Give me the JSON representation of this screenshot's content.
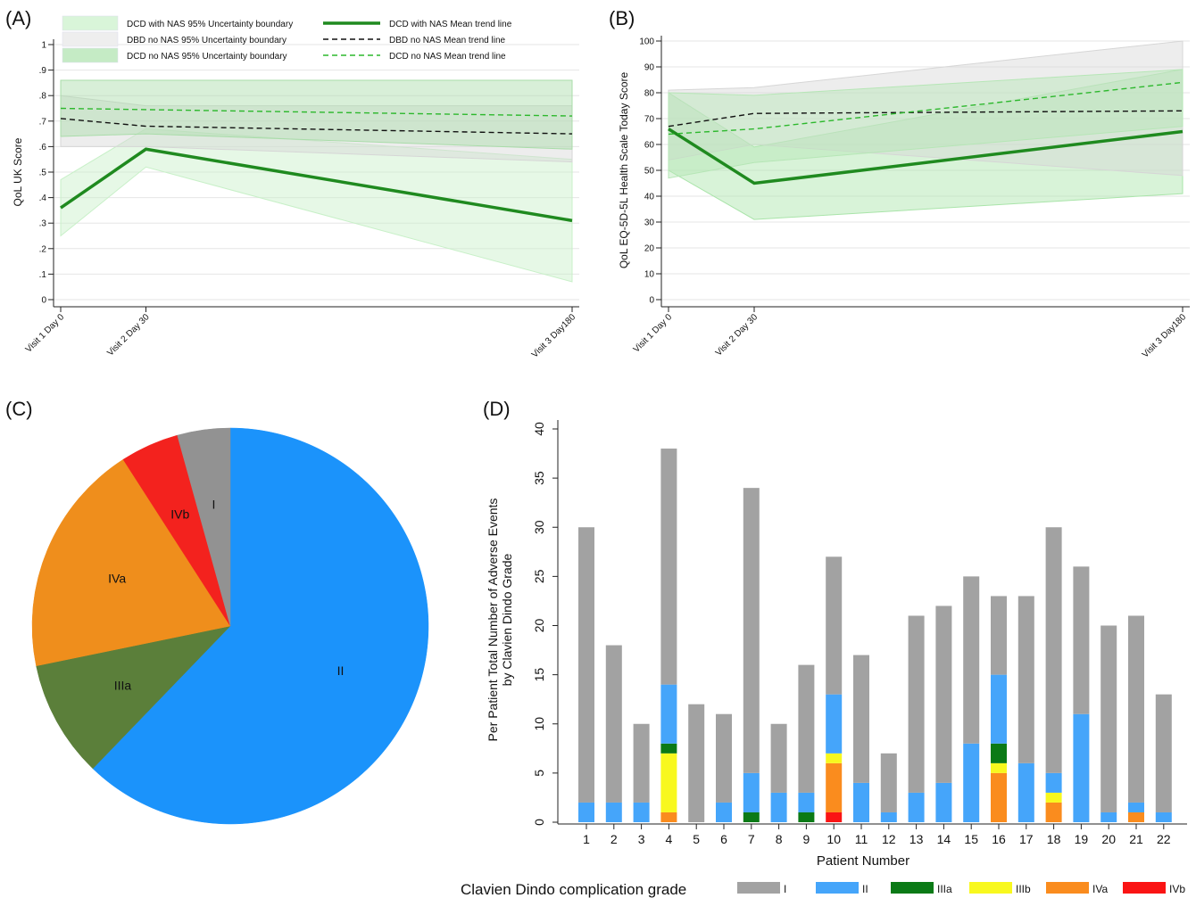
{
  "panel_labels": [
    "(A)",
    "(B)",
    "(C)",
    "(D)"
  ],
  "chart_data": [
    {
      "type": "line",
      "panel": "(A)",
      "ylabel": "QoL UK Score",
      "xlabel": "",
      "x": [
        0,
        30,
        180
      ],
      "x_tick_labels": [
        "Visit 1 Day 0",
        "Visit 2 Day 30",
        "Visit 3 Day180"
      ],
      "ylim": [
        0,
        1
      ],
      "y_ticks": [
        0,
        0.1,
        0.2,
        0.3,
        0.4,
        0.5,
        0.6,
        0.7,
        0.8,
        0.9,
        1
      ],
      "y_tick_labels": [
        "0",
        ".1",
        ".2",
        ".3",
        ".4",
        ".5",
        ".6",
        ".7",
        ".8",
        ".9",
        "1"
      ],
      "grid": true,
      "legend": [
        "DCD with NAS 95% Uncertainty boundary",
        "DBD no NAS 95% Uncertainty boundary",
        "DCD no NAS 95% Uncertainty boundary",
        "DCD with NAS Mean trend line",
        "DBD no NAS Mean trend line",
        "DCD no NAS Mean trend line"
      ],
      "legend_placement": "top",
      "series": [
        {
          "name": "DCD with NAS Mean trend line",
          "values": [
            0.36,
            0.59,
            0.31
          ],
          "color": "#1f8a1f",
          "style": "solid-thick"
        },
        {
          "name": "DBD no NAS Mean trend line",
          "values": [
            0.71,
            0.68,
            0.65
          ],
          "color": "#111111",
          "style": "dashed"
        },
        {
          "name": "DCD no NAS Mean trend line",
          "values": [
            0.75,
            0.745,
            0.72
          ],
          "color": "#2db82d",
          "style": "dashed"
        }
      ],
      "bands": [
        {
          "name": "DCD with NAS 95% Uncertainty boundary",
          "lower": [
            0.25,
            0.52,
            0.07
          ],
          "upper": [
            0.47,
            0.67,
            0.55
          ],
          "color": "#c8f0c8"
        },
        {
          "name": "DBD no NAS 95% Uncertainty boundary",
          "lower": [
            0.6,
            0.6,
            0.54
          ],
          "upper": [
            0.8,
            0.76,
            0.76
          ],
          "color": "#d6d6d6"
        },
        {
          "name": "DCD no NAS 95% Uncertainty boundary",
          "lower": [
            0.64,
            0.65,
            0.59
          ],
          "upper": [
            0.86,
            0.86,
            0.86
          ],
          "color": "#a9dca9"
        }
      ]
    },
    {
      "type": "line",
      "panel": "(B)",
      "ylabel": "QoL EQ-5D-5L Health Scale Today Score",
      "xlabel": "",
      "x": [
        0,
        30,
        180
      ],
      "x_tick_labels": [
        "Visit 1 Day 0",
        "Visit 2 Day 30",
        "Visit 3 Day180"
      ],
      "ylim": [
        0,
        100
      ],
      "y_ticks": [
        0,
        10,
        20,
        30,
        40,
        50,
        60,
        70,
        80,
        90,
        100
      ],
      "y_tick_labels": [
        "0",
        "10",
        "20",
        "30",
        "40",
        "50",
        "60",
        "70",
        "80",
        "90",
        "100"
      ],
      "grid": true,
      "series": [
        {
          "name": "DCD with NAS Mean trend line",
          "values": [
            66,
            45,
            65
          ],
          "color": "#1f8a1f",
          "style": "solid-thick"
        },
        {
          "name": "DBD no NAS Mean trend line",
          "values": [
            67,
            72,
            73
          ],
          "color": "#111111",
          "style": "dashed"
        },
        {
          "name": "DCD no NAS Mean trend line",
          "values": [
            64,
            66,
            84
          ],
          "color": "#2db82d",
          "style": "dashed"
        }
      ],
      "bands": [
        {
          "name": "DCD with NAS 95% Uncertainty boundary",
          "lower": [
            50,
            31,
            41
          ],
          "upper": [
            80,
            59,
            89
          ],
          "color": "#a9e4a9"
        },
        {
          "name": "DBD no NAS 95% Uncertainty boundary",
          "lower": [
            54,
            60,
            48
          ],
          "upper": [
            81,
            82,
            100
          ],
          "color": "#d6d6d6"
        },
        {
          "name": "DCD no NAS 95% Uncertainty boundary",
          "lower": [
            47,
            53,
            67
          ],
          "upper": [
            80,
            79,
            89
          ],
          "color": "#b6e6b6"
        }
      ]
    },
    {
      "type": "pie",
      "panel": "(C)",
      "slices": [
        {
          "label": "II",
          "value": 65,
          "color": "#1b93fb"
        },
        {
          "label": "IIIa",
          "value": 10,
          "color": "#5b7f3a"
        },
        {
          "label": "IVa",
          "value": 20,
          "color": "#ef8e1c"
        },
        {
          "label": "IVb",
          "value": 5,
          "color": "#f3221e"
        },
        {
          "label": "I",
          "value": 4.5,
          "color": "#929292"
        }
      ]
    },
    {
      "type": "bar",
      "panel": "(D)",
      "stacked": true,
      "xlabel": "Patient Number",
      "ylabel": "Per Patient Total Number of Adverse Events by Clavien Dindo Grade",
      "ylim": [
        0,
        40
      ],
      "y_ticks": [
        0,
        5,
        10,
        15,
        20,
        25,
        30,
        35,
        40
      ],
      "categories": [
        "1",
        "2",
        "3",
        "4",
        "5",
        "6",
        "7",
        "8",
        "9",
        "10",
        "11",
        "12",
        "13",
        "14",
        "15",
        "16",
        "17",
        "18",
        "19",
        "20",
        "21",
        "22"
      ],
      "legend_title": "Clavien Dindo complication grade",
      "legend_placement": "bottom",
      "series": [
        {
          "name": "IVb",
          "color": "#fa1414",
          "values": [
            0,
            0,
            0,
            0,
            0,
            0,
            0,
            0,
            0,
            1,
            0,
            0,
            0,
            0,
            0,
            0,
            0,
            0,
            0,
            0,
            0,
            0
          ]
        },
        {
          "name": "IVa",
          "color": "#fa8c1e",
          "values": [
            0,
            0,
            0,
            1,
            0,
            0,
            0,
            0,
            0,
            5,
            0,
            0,
            0,
            0,
            0,
            5,
            0,
            2,
            0,
            0,
            1,
            0
          ]
        },
        {
          "name": "IIIb",
          "color": "#f8f81e",
          "values": [
            0,
            0,
            0,
            6,
            0,
            0,
            0,
            0,
            0,
            1,
            0,
            0,
            0,
            0,
            0,
            1,
            0,
            1,
            0,
            0,
            0,
            0
          ]
        },
        {
          "name": "IIIa",
          "color": "#0b7a16",
          "values": [
            0,
            0,
            0,
            1,
            0,
            0,
            1,
            0,
            1,
            0,
            0,
            0,
            0,
            0,
            0,
            2,
            0,
            0,
            0,
            0,
            0,
            0
          ]
        },
        {
          "name": "II",
          "color": "#45a5fa",
          "values": [
            2,
            2,
            2,
            6,
            0,
            2,
            4,
            3,
            2,
            6,
            4,
            1,
            3,
            4,
            8,
            7,
            6,
            2,
            11,
            1,
            1,
            1
          ]
        },
        {
          "name": "I",
          "color": "#a2a2a2",
          "values": [
            28,
            16,
            8,
            24,
            12,
            9,
            29,
            7,
            13,
            14,
            13,
            6,
            18,
            18,
            17,
            8,
            17,
            25,
            15,
            19,
            19,
            12
          ]
        }
      ]
    }
  ]
}
